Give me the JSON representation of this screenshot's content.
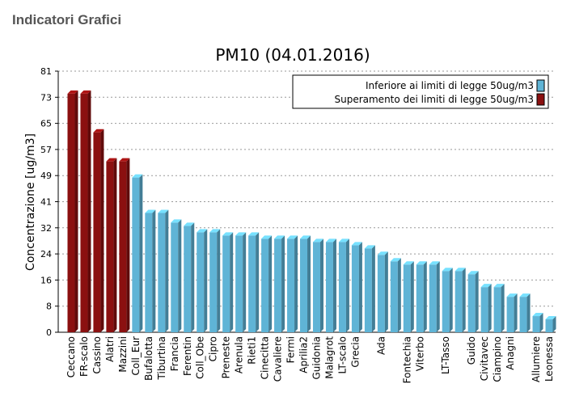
{
  "header": {
    "title": "Indicatori Grafici"
  },
  "chart_data": {
    "type": "bar",
    "title": "PM10 (04.01.2016)",
    "y_label": "Concentrazione [ug/m3]",
    "categories": [
      "Ceccano",
      "FR-scalo",
      "Cassino",
      "Alatri",
      "Mazzini",
      "Coll_Eur",
      "Bufalotta",
      "Tiburtina",
      "Francia",
      "Ferentin",
      "Coll_Obe",
      "Cipro",
      "Preneste",
      "Arenula",
      "Rieti1",
      "Cinecitta",
      "Cavaliere",
      "Fermi",
      "Aprilia2",
      "Guidonia",
      "Malagrot",
      "LT-scalo",
      "Grecia",
      null,
      "Ada",
      null,
      "Fontechia",
      "Viterbo",
      null,
      "LT-Tasso",
      null,
      "Guido",
      "Civitavec",
      "Ciampino",
      "Anagni",
      null,
      "Allumiere",
      "Leonessa"
    ],
    "series": [
      {
        "name": "Inferiore ai limiti di legge 50ug/m3",
        "color": "#5fb4d6",
        "values": [
          null,
          null,
          null,
          null,
          null,
          48,
          37,
          37,
          34,
          33,
          31,
          31,
          30,
          30,
          30,
          29,
          29,
          29,
          29,
          28,
          28,
          28,
          27,
          26,
          24,
          22,
          21,
          21,
          21,
          19,
          19,
          18,
          14,
          14,
          11,
          11,
          5,
          4
        ]
      },
      {
        "name": "Superamento dei limiti di legge 50ug/m3",
        "color": "#8b1010",
        "values": [
          74,
          74,
          62,
          53,
          53,
          null,
          null,
          null,
          null,
          null,
          null,
          null,
          null,
          null,
          null,
          null,
          null,
          null,
          null,
          null,
          null,
          null,
          null,
          null,
          null,
          null,
          null,
          null,
          null,
          null,
          null,
          null,
          null,
          null,
          null,
          null,
          null,
          null
        ]
      }
    ],
    "ylim": [
      0,
      81
    ],
    "yticks": [
      0,
      {
        "value": 8.1,
        "label": "8"
      },
      {
        "value": 16.2,
        "label": "16"
      },
      {
        "value": 24.3,
        "label": "24"
      },
      {
        "value": 32.4,
        "label": "32"
      },
      {
        "value": 40.5,
        "label": "41"
      },
      {
        "value": 48.6,
        "label": "49"
      },
      {
        "value": 56.7,
        "label": "57"
      },
      {
        "value": 64.8,
        "label": "65"
      },
      {
        "value": 72.9,
        "label": "73"
      },
      81
    ],
    "grid": true,
    "legend": "top-right"
  }
}
